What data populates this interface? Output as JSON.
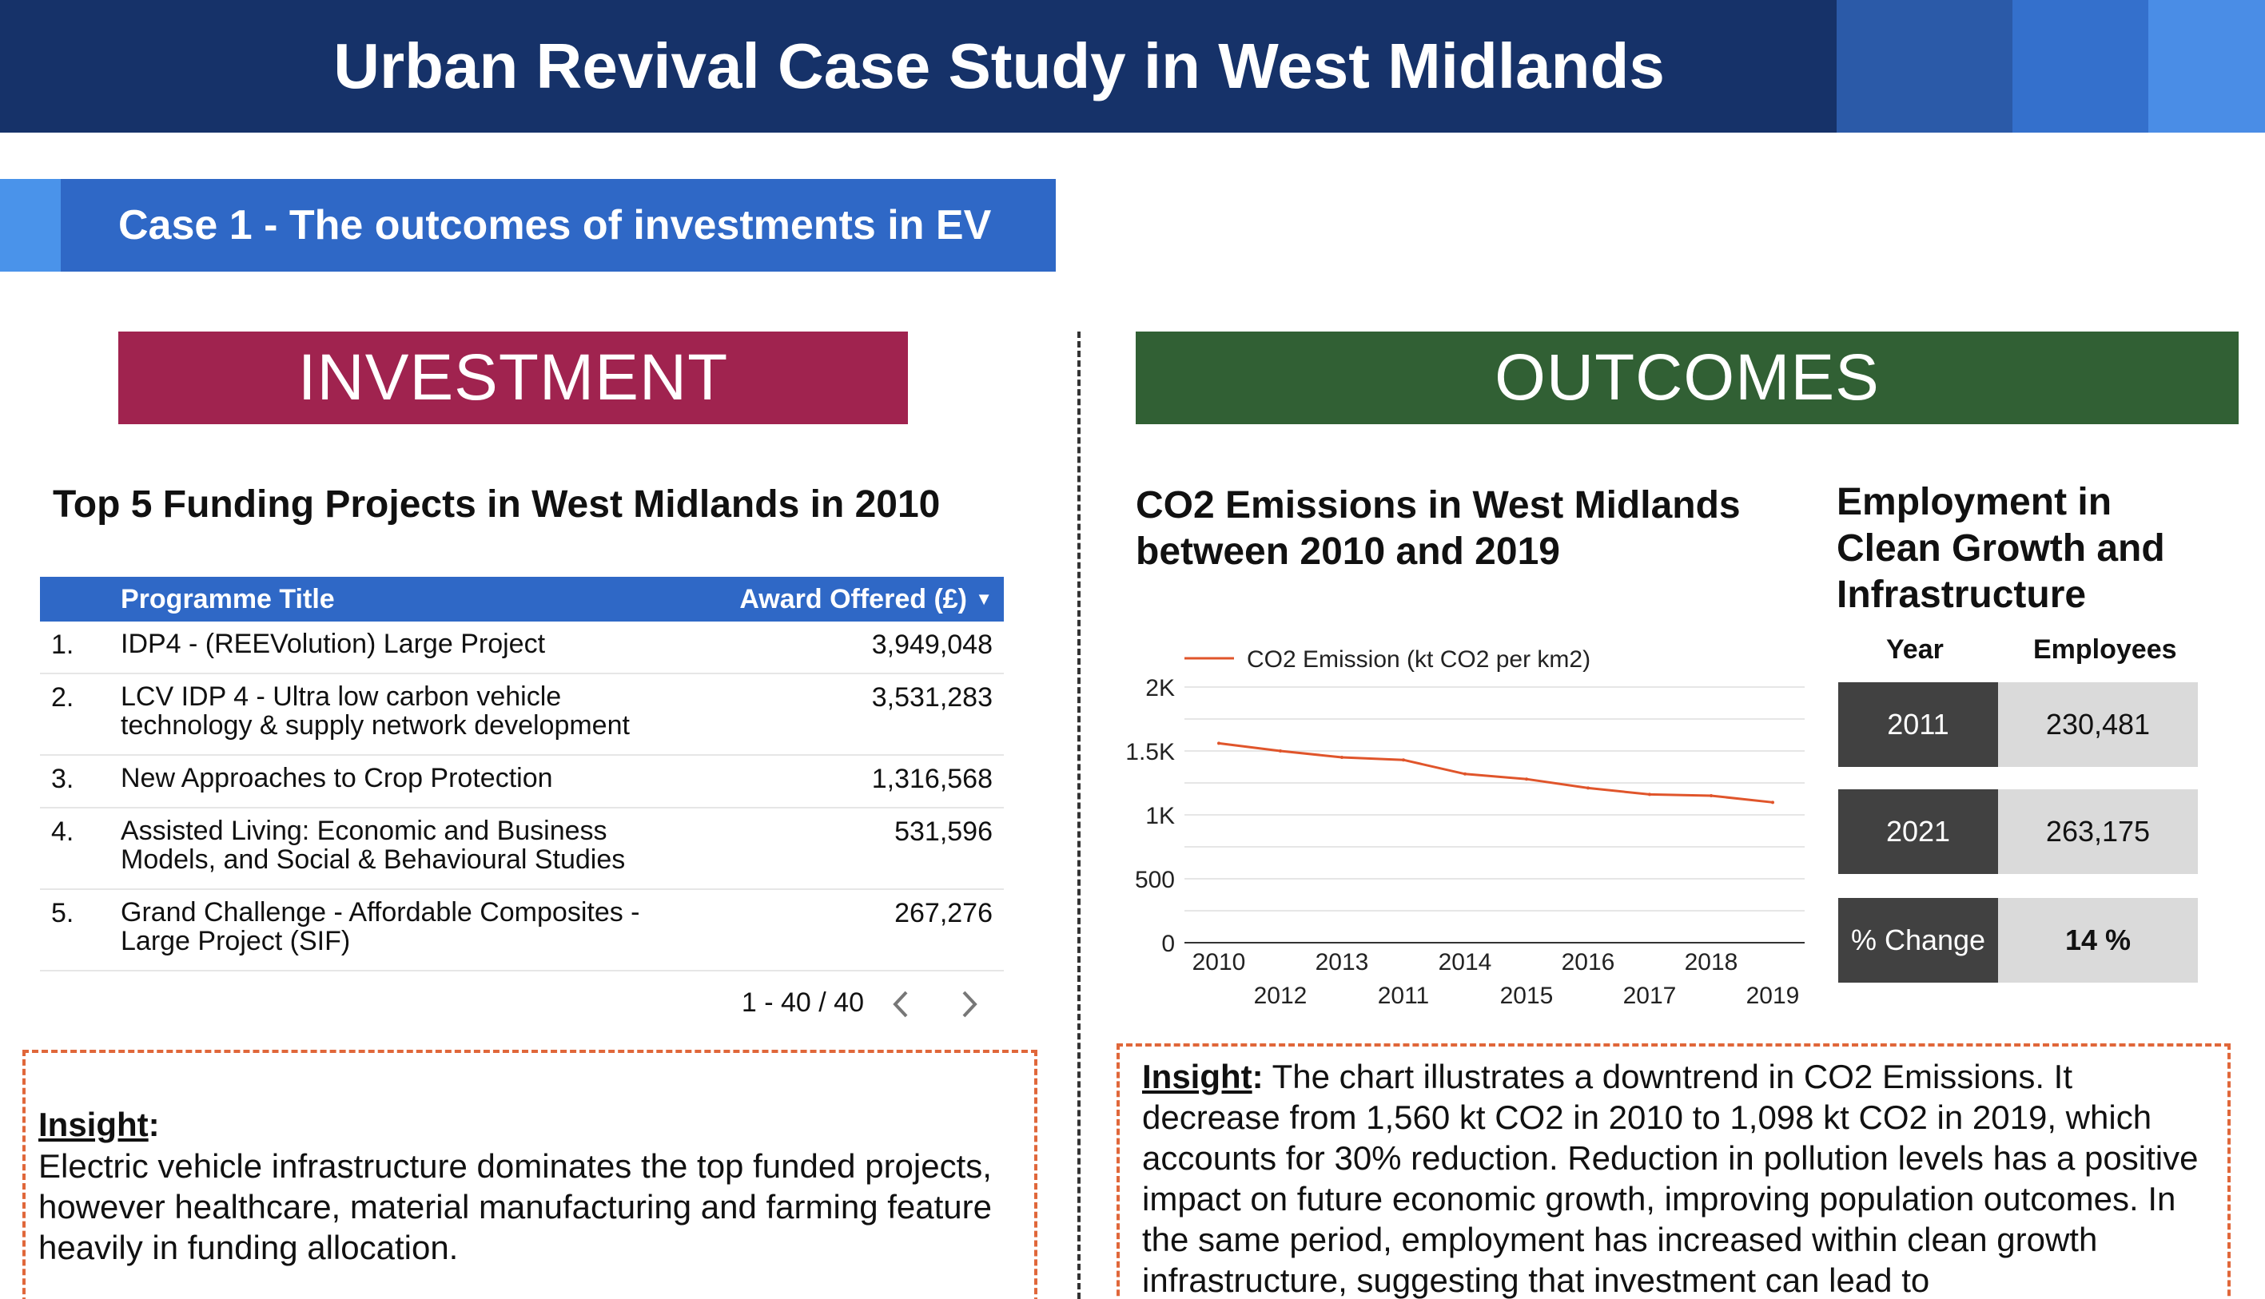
{
  "header": {
    "title": "Urban Revival Case Study in West Midlands"
  },
  "case": {
    "title": "Case 1 - The outcomes of investments in EV"
  },
  "investment": {
    "heading": "INVESTMENT",
    "table_title": "Top 5 Funding Projects in West Midlands in 2010",
    "columns": {
      "programme": "Programme Title",
      "award": "Award Offered (£)"
    },
    "rows": [
      {
        "num": "1.",
        "programme": "IDP4 - (REEVolution) Large Project",
        "award": "3,949,048"
      },
      {
        "num": "2.",
        "programme": "LCV IDP 4 - Ultra low carbon vehicle technology & supply network development",
        "award": "3,531,283"
      },
      {
        "num": "3.",
        "programme": "New Approaches to Crop Protection",
        "award": "1,316,568"
      },
      {
        "num": "4.",
        "programme": "Assisted Living: Economic and Business Models, and Social & Behavioural Studies",
        "award": "531,596"
      },
      {
        "num": "5.",
        "programme": "Grand Challenge - Affordable Composites - Large Project (SIF)",
        "award": "267,276"
      }
    ],
    "pager": {
      "range": "1 - 40 / 40"
    },
    "insight": {
      "label": "Insight",
      "text": "Electric vehicle infrastructure dominates the top funded projects, however healthcare, material manufacturing and farming feature heavily in funding allocation."
    }
  },
  "outcomes": {
    "heading": "OUTCOMES",
    "chart_title": "CO2 Emissions in West Midlands between 2010 and 2019",
    "employment": {
      "title": "Employment in Clean Growth and Infrastructure",
      "columns": {
        "year": "Year",
        "employees": "Employees"
      },
      "rows": [
        {
          "year": "2011",
          "employees": "230,481"
        },
        {
          "year": "2021",
          "employees": "263,175"
        }
      ],
      "change": {
        "label": "% Change",
        "value": "14 %"
      }
    },
    "insight": {
      "label": "Insight",
      "text": "The chart illustrates a downtrend in CO2 Emissions. It decrease from 1,560 kt CO2 in 2010 to 1,098 kt CO2 in 2019, which accounts for 30% reduction. Reduction in pollution levels has a positive impact on future economic growth, improving population outcomes. In the same period, employment has increased within clean growth infrastructure, suggesting that investment can lead to"
    }
  },
  "colors": {
    "header_bg": "#163269",
    "banner_blue": "#2f68c6",
    "investment_bg": "#a0234f",
    "outcomes_bg": "#316034",
    "line": "#e0552b",
    "insight_border": "#e0673a"
  },
  "chart_data": {
    "type": "line",
    "x": [
      "2010",
      "2012",
      "2013",
      "2011",
      "2014",
      "2015",
      "2016",
      "2017",
      "2018",
      "2019"
    ],
    "series": [
      {
        "name": "CO2 Emission (kt CO2 per km2)",
        "values": [
          1560,
          1500,
          1450,
          1430,
          1320,
          1280,
          1210,
          1160,
          1150,
          1098
        ]
      }
    ],
    "yticks": [
      "0",
      "500",
      "1K",
      "1.5K",
      "2K"
    ],
    "ylim": [
      0,
      2000
    ],
    "grid": true,
    "legend": "top-left"
  }
}
